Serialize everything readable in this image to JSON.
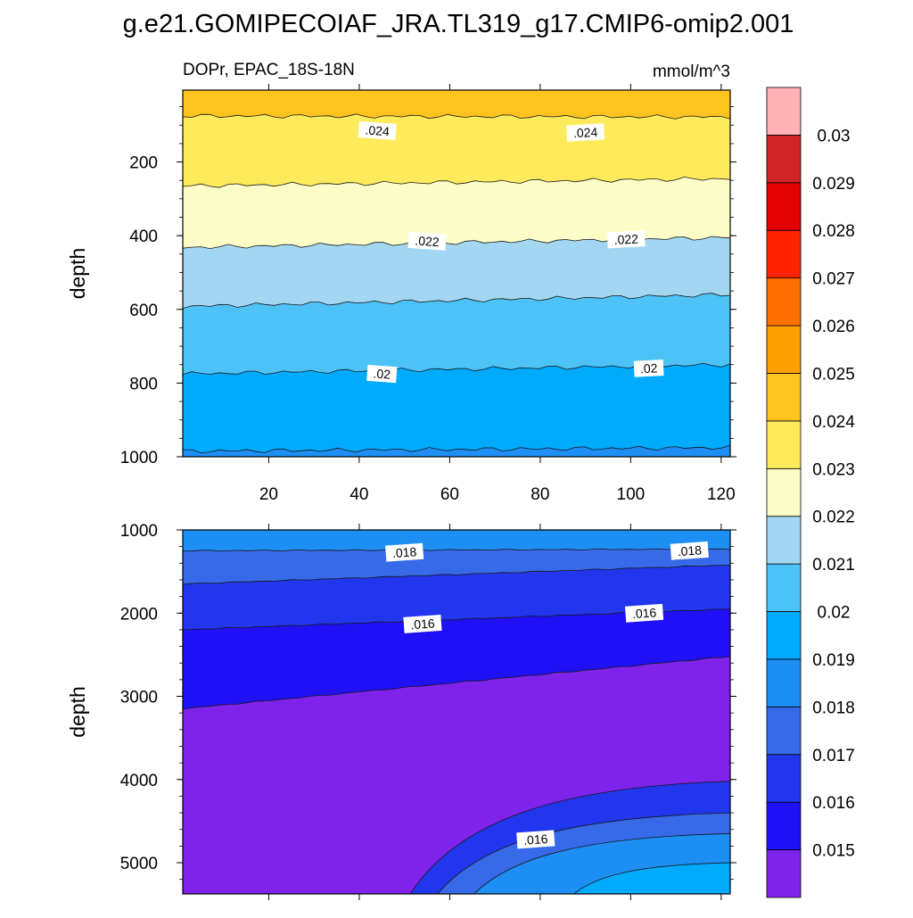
{
  "title": "g.e21.GOMIPECOIAF_JRA.TL319_g17.CMIP6-omip2.001",
  "variable_label": "DOPr, EPAC_18S-18N",
  "units": "mmol/m^3",
  "colors": {
    "palette": [
      "#7f22ec",
      "#2010f6",
      "#2237ed",
      "#376ae8",
      "#1c8ef4",
      "#00abfe",
      "#4dc2f6",
      "#a3d6f1",
      "#fdfdc8",
      "#feeb5b",
      "#fdc420",
      "#fe9f02",
      "#fd7000",
      "#fe2400",
      "#e30000",
      "#d12427",
      "#ffb3b5"
    ],
    "contour_line": "#1a1a1a"
  },
  "colorbar": {
    "labels": [
      "0.015",
      "0.016",
      "0.017",
      "0.018",
      "0.019",
      "0.02",
      "0.021",
      "0.022",
      "0.023",
      "0.024",
      "0.025",
      "0.026",
      "0.027",
      "0.028",
      "0.029",
      "0.03"
    ]
  },
  "chart_data": [
    {
      "type": "heatmap",
      "panel": "upper",
      "title": "DOPr, EPAC_18S-18N",
      "units": "mmol/m^3",
      "xlabel": "",
      "ylabel": "depth",
      "xlim": [
        1,
        122
      ],
      "ylim": [
        1000,
        5
      ],
      "xticks": [
        "20",
        "40",
        "60",
        "80",
        "100",
        "120"
      ],
      "yticks": [
        "200",
        "400",
        "600",
        "800",
        "1000"
      ],
      "contour_levels": [
        0.015,
        0.016,
        0.017,
        0.018,
        0.019,
        0.02,
        0.021,
        0.022,
        0.023,
        0.024,
        0.025,
        0.026,
        0.027,
        0.028,
        0.029,
        0.03
      ],
      "boundaries": [
        {
          "level": 0.024,
          "depth_at_x1": 75,
          "depth_at_x122": 78
        },
        {
          "level": 0.023,
          "depth_at_x1": 265,
          "depth_at_x122": 245
        },
        {
          "level": 0.022,
          "depth_at_x1": 432,
          "depth_at_x122": 405
        },
        {
          "level": 0.021,
          "depth_at_x1": 592,
          "depth_at_x122": 560
        },
        {
          "level": 0.02,
          "depth_at_x1": 775,
          "depth_at_x122": 750
        },
        {
          "level": 0.019,
          "depth_at_x1": 985,
          "depth_at_x122": 975
        }
      ],
      "contour_labels": [
        {
          "text": ".024",
          "x": 44,
          "depth": 115
        },
        {
          "text": ".024",
          "x": 90,
          "depth": 120
        },
        {
          "text": ".022",
          "x": 55,
          "depth": 415
        },
        {
          "text": ".022",
          "x": 99,
          "depth": 410
        },
        {
          "text": ".02",
          "x": 45,
          "depth": 775
        },
        {
          "text": ".02",
          "x": 104,
          "depth": 760
        }
      ]
    },
    {
      "type": "heatmap",
      "panel": "lower",
      "xlabel": "",
      "ylabel": "depth",
      "xlim": [
        1,
        122
      ],
      "ylim": [
        5375,
        1000
      ],
      "xticks": [
        "20",
        "40",
        "60",
        "80",
        "100",
        "120"
      ],
      "yticks": [
        "1000",
        "2000",
        "3000",
        "4000",
        "5000"
      ],
      "contour_levels": [
        0.015,
        0.016,
        0.017,
        0.018,
        0.019,
        0.02
      ],
      "boundaries": [
        {
          "level": 0.018,
          "depth_at_x1": 1250,
          "depth_at_x122": 1230
        },
        {
          "level": 0.017,
          "depth_at_x1": 1650,
          "depth_at_x122": 1420
        },
        {
          "level": 0.016,
          "depth_at_x1": 2200,
          "depth_at_x122": 1950
        },
        {
          "level": 0.015,
          "depth_at_x1": 3150,
          "depth_at_x122": 2520
        }
      ],
      "deep_bulge": [
        {
          "level": 0.016,
          "depth_at_x122": 4020,
          "x_at_bottom": 51
        },
        {
          "level": 0.017,
          "depth_at_x122": 4400,
          "x_at_bottom": 57
        },
        {
          "level": 0.018,
          "depth_at_x122": 4650,
          "x_at_bottom": 65
        },
        {
          "level": 0.019,
          "depth_at_x122": 5000,
          "x_at_bottom": 87
        }
      ],
      "contour_labels": [
        {
          "text": ".018",
          "x": 50,
          "depth": 1270
        },
        {
          "text": ".018",
          "x": 113,
          "depth": 1250
        },
        {
          "text": ".016",
          "x": 54,
          "depth": 2130
        },
        {
          "text": ".016",
          "x": 103,
          "depth": 2000
        },
        {
          "text": ".016",
          "x": 79,
          "depth": 4720
        }
      ]
    }
  ]
}
